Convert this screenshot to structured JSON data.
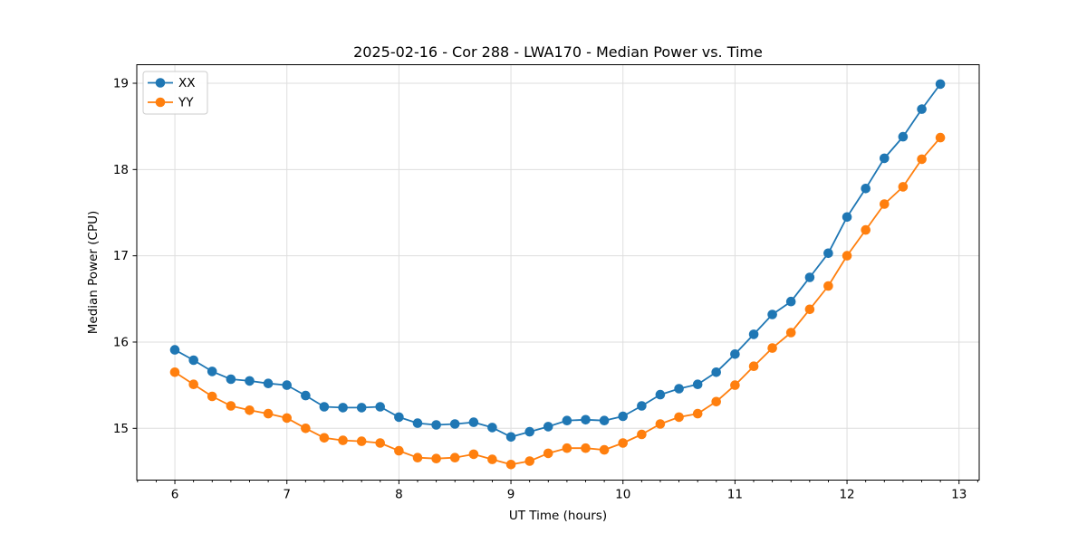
{
  "chart_data": {
    "type": "line",
    "title": "2025-02-16 - Cor 288 - LWA170 - Median Power vs. Time",
    "xlabel": "UT Time (hours)",
    "ylabel": "Median Power (CPU)",
    "xlim": [
      5.66,
      13.18
    ],
    "ylim": [
      14.4,
      19.215
    ],
    "xticks": [
      6,
      7,
      8,
      9,
      10,
      11,
      12,
      13
    ],
    "yticks": [
      15,
      16,
      17,
      18,
      19
    ],
    "x_minor_step": 0.166667,
    "grid": true,
    "grid_color": "#dedede",
    "legend_position": "upper-left",
    "background": "#ffffff",
    "x": [
      6.0,
      6.167,
      6.333,
      6.5,
      6.667,
      6.833,
      7.0,
      7.167,
      7.333,
      7.5,
      7.667,
      7.833,
      8.0,
      8.167,
      8.333,
      8.5,
      8.667,
      8.833,
      9.0,
      9.167,
      9.333,
      9.5,
      9.667,
      9.833,
      10.0,
      10.167,
      10.333,
      10.5,
      10.667,
      10.833,
      11.0,
      11.167,
      11.333,
      11.5,
      11.667,
      11.833,
      12.0,
      12.167,
      12.333,
      12.5,
      12.667,
      12.833
    ],
    "series": [
      {
        "name": "XX",
        "color": "#1f77b4",
        "values": [
          15.91,
          15.79,
          15.66,
          15.57,
          15.55,
          15.52,
          15.5,
          15.38,
          15.25,
          15.24,
          15.24,
          15.25,
          15.13,
          15.06,
          15.04,
          15.05,
          15.07,
          15.01,
          14.9,
          14.96,
          15.02,
          15.09,
          15.1,
          15.09,
          15.14,
          15.26,
          15.39,
          15.46,
          15.51,
          15.65,
          15.86,
          16.09,
          16.32,
          16.47,
          16.75,
          17.03,
          17.45,
          17.78,
          18.13,
          18.38,
          18.7,
          18.99
        ]
      },
      {
        "name": "YY",
        "color": "#ff7f0e",
        "values": [
          15.65,
          15.51,
          15.37,
          15.26,
          15.21,
          15.17,
          15.12,
          15.0,
          14.89,
          14.86,
          14.85,
          14.83,
          14.74,
          14.66,
          14.65,
          14.66,
          14.7,
          14.64,
          14.58,
          14.62,
          14.71,
          14.77,
          14.77,
          14.75,
          14.83,
          14.93,
          15.05,
          15.13,
          15.17,
          15.31,
          15.5,
          15.72,
          15.93,
          16.11,
          16.38,
          16.65,
          17.0,
          17.3,
          17.6,
          17.8,
          18.12,
          18.37
        ]
      }
    ]
  }
}
